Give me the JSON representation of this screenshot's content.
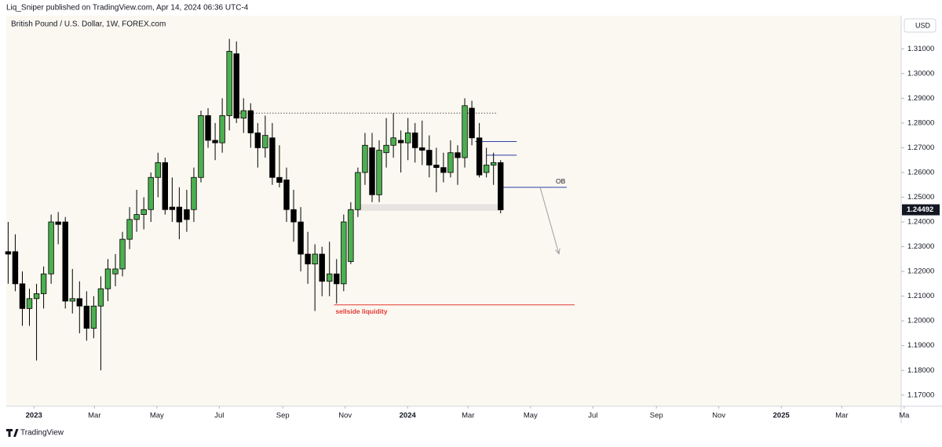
{
  "header": "Liq_Sniper published on TradingView.com, Apr 14, 2024 06:36 UTC-4",
  "footer": "TradingView",
  "chart_data": {
    "type": "candlestick",
    "title": "British Pound / U.S. Dollar, 1W, FOREX.com",
    "currency": "USD",
    "up_color": "#4caf50",
    "down_color": "#000000",
    "x": [
      2022.931,
      2022.95,
      2022.969,
      2022.988,
      2023.007,
      2023.026,
      2023.046,
      2023.065,
      2023.084,
      2023.103,
      2023.122,
      2023.141,
      2023.16,
      2023.179,
      2023.198,
      2023.218,
      2023.237,
      2023.256,
      2023.275,
      2023.294,
      2023.313,
      2023.332,
      2023.351,
      2023.37,
      2023.389,
      2023.409,
      2023.428,
      2023.447,
      2023.466,
      2023.485,
      2023.504,
      2023.523,
      2023.542,
      2023.561,
      2023.58,
      2023.599,
      2023.619,
      2023.638,
      2023.657,
      2023.676,
      2023.695,
      2023.714,
      2023.733,
      2023.752,
      2023.771,
      2023.791,
      2023.81,
      2023.829,
      2023.848,
      2023.867,
      2023.886,
      2023.905,
      2023.924,
      2023.943,
      2023.962,
      2023.982,
      2024.001,
      2024.02,
      2024.039,
      2024.058,
      2024.077,
      2024.096,
      2024.115,
      2024.134,
      2024.153,
      2024.172,
      2024.192,
      2024.211,
      2024.23,
      2024.249
    ],
    "open": [
      1.228,
      1.228,
      1.215,
      1.205,
      1.209,
      1.211,
      1.219,
      1.24,
      1.24,
      1.208,
      1.209,
      1.206,
      1.197,
      1.206,
      1.213,
      1.219,
      1.221,
      1.233,
      1.241,
      1.243,
      1.245,
      1.258,
      1.264,
      1.246,
      1.246,
      1.245,
      1.245,
      1.258,
      1.283,
      1.273,
      1.272,
      1.283,
      1.308,
      1.282,
      1.285,
      1.276,
      1.27,
      1.274,
      1.258,
      1.257,
      1.245,
      1.24,
      1.227,
      1.223,
      1.227,
      1.216,
      1.219,
      1.215,
      1.224,
      1.245,
      1.26,
      1.27,
      1.251,
      1.268,
      1.271,
      1.273,
      1.272,
      1.276,
      1.27,
      1.269,
      1.263,
      1.262,
      1.26,
      1.268,
      1.266,
      1.286,
      1.274,
      1.26,
      1.263,
      1.264
    ],
    "high": [
      1.24,
      1.235,
      1.22,
      1.213,
      1.215,
      1.222,
      1.243,
      1.244,
      1.242,
      1.221,
      1.216,
      1.212,
      1.21,
      1.218,
      1.225,
      1.227,
      1.236,
      1.246,
      1.253,
      1.25,
      1.26,
      1.268,
      1.266,
      1.258,
      1.254,
      1.253,
      1.262,
      1.285,
      1.286,
      1.28,
      1.29,
      1.314,
      1.313,
      1.29,
      1.288,
      1.28,
      1.283,
      1.28,
      1.271,
      1.262,
      1.253,
      1.246,
      1.236,
      1.231,
      1.23,
      1.232,
      1.225,
      1.243,
      1.248,
      1.262,
      1.276,
      1.276,
      1.273,
      1.282,
      1.284,
      1.277,
      1.282,
      1.28,
      1.281,
      1.275,
      1.27,
      1.268,
      1.273,
      1.271,
      1.29,
      1.289,
      1.28,
      1.27,
      1.268,
      1.265
    ],
    "low": [
      1.215,
      1.212,
      1.198,
      1.198,
      1.184,
      1.205,
      1.215,
      1.231,
      1.205,
      1.203,
      1.195,
      1.192,
      1.193,
      1.18,
      1.208,
      1.214,
      1.218,
      1.229,
      1.236,
      1.237,
      1.24,
      1.25,
      1.243,
      1.24,
      1.233,
      1.236,
      1.24,
      1.256,
      1.27,
      1.265,
      1.268,
      1.277,
      1.28,
      1.276,
      1.27,
      1.262,
      1.266,
      1.255,
      1.254,
      1.24,
      1.232,
      1.22,
      1.215,
      1.204,
      1.21,
      1.21,
      1.207,
      1.212,
      1.223,
      1.242,
      1.255,
      1.248,
      1.248,
      1.262,
      1.266,
      1.26,
      1.265,
      1.264,
      1.263,
      1.258,
      1.252,
      1.256,
      1.258,
      1.255,
      1.262,
      1.271,
      1.258,
      1.258,
      1.255,
      1.2435
    ],
    "close": [
      1.227,
      1.215,
      1.205,
      1.209,
      1.211,
      1.219,
      1.24,
      1.239,
      1.208,
      1.209,
      1.206,
      1.197,
      1.206,
      1.213,
      1.221,
      1.221,
      1.233,
      1.241,
      1.243,
      1.245,
      1.258,
      1.264,
      1.245,
      1.245,
      1.24,
      1.241,
      1.258,
      1.283,
      1.273,
      1.272,
      1.283,
      1.309,
      1.282,
      1.285,
      1.276,
      1.27,
      1.275,
      1.258,
      1.256,
      1.245,
      1.24,
      1.227,
      1.223,
      1.227,
      1.216,
      1.219,
      1.215,
      1.24,
      1.245,
      1.26,
      1.271,
      1.251,
      1.269,
      1.271,
      1.274,
      1.272,
      1.276,
      1.27,
      1.269,
      1.263,
      1.262,
      1.26,
      1.268,
      1.266,
      1.287,
      1.274,
      1.259,
      1.263,
      1.264,
      1.24492
    ],
    "xlim": [
      2022.926,
      2025.321
    ],
    "ylim": [
      1.1655,
      1.3234
    ],
    "xticks": [
      {
        "value": 2023,
        "label": "2023"
      },
      {
        "value": 2023.162,
        "label": "Mar"
      },
      {
        "value": 2023.329,
        "label": "May"
      },
      {
        "value": 2023.496,
        "label": "Jul"
      },
      {
        "value": 2023.666,
        "label": "Sep"
      },
      {
        "value": 2023.833,
        "label": "Nov"
      },
      {
        "value": 2024,
        "label": "2024"
      },
      {
        "value": 2024.162,
        "label": "Mar"
      },
      {
        "value": 2024.329,
        "label": "May"
      },
      {
        "value": 2024.496,
        "label": "Jul"
      },
      {
        "value": 2024.666,
        "label": "Sep"
      },
      {
        "value": 2024.833,
        "label": "Nov"
      },
      {
        "value": 2025,
        "label": "2025"
      },
      {
        "value": 2025.162,
        "label": "Mar"
      },
      {
        "value": 2025.329,
        "label": "Ma"
      }
    ],
    "yticks": [
      {
        "value": 1.17,
        "label": "1.17000"
      },
      {
        "value": 1.18,
        "label": "1.18000"
      },
      {
        "value": 1.19,
        "label": "1.19000"
      },
      {
        "value": 1.2,
        "label": "1.20000"
      },
      {
        "value": 1.21,
        "label": "1.21000"
      },
      {
        "value": 1.22,
        "label": "1.22000"
      },
      {
        "value": 1.23,
        "label": "1.23000"
      },
      {
        "value": 1.24,
        "label": "1.24000"
      },
      {
        "value": 1.25,
        "label": "1.25000"
      },
      {
        "value": 1.26,
        "label": "1.26000"
      },
      {
        "value": 1.27,
        "label": "1.27000"
      },
      {
        "value": 1.28,
        "label": "1.28000"
      },
      {
        "value": 1.29,
        "label": "1.29000"
      },
      {
        "value": 1.3,
        "label": "1.30000"
      },
      {
        "value": 1.31,
        "label": "1.31000"
      }
    ],
    "lines": [
      {
        "price": 1.284,
        "from": 2023.55,
        "to": 2024.237,
        "color": "#555555",
        "dash": true
      },
      {
        "price": 1.2725,
        "from": 2024.181,
        "to": 2024.292,
        "color": "#2b3fa8"
      },
      {
        "price": 1.267,
        "from": 2024.212,
        "to": 2024.292,
        "color": "#2b3fa8"
      },
      {
        "price": 1.254,
        "from": 2024.254,
        "to": 2024.426,
        "color": "#2b3fa8",
        "label": "OB"
      },
      {
        "price": 1.2065,
        "from": 2023.803,
        "to": 2024.447,
        "color": "#e53935",
        "label": "sellside liquidity"
      }
    ],
    "zone": {
      "low": 1.2445,
      "high": 1.2472,
      "from": 2023.859,
      "to": 2024.254
    },
    "arrow": {
      "from": [
        2024.355,
        1.2539
      ],
      "to": [
        2024.405,
        1.2271
      ]
    }
  }
}
